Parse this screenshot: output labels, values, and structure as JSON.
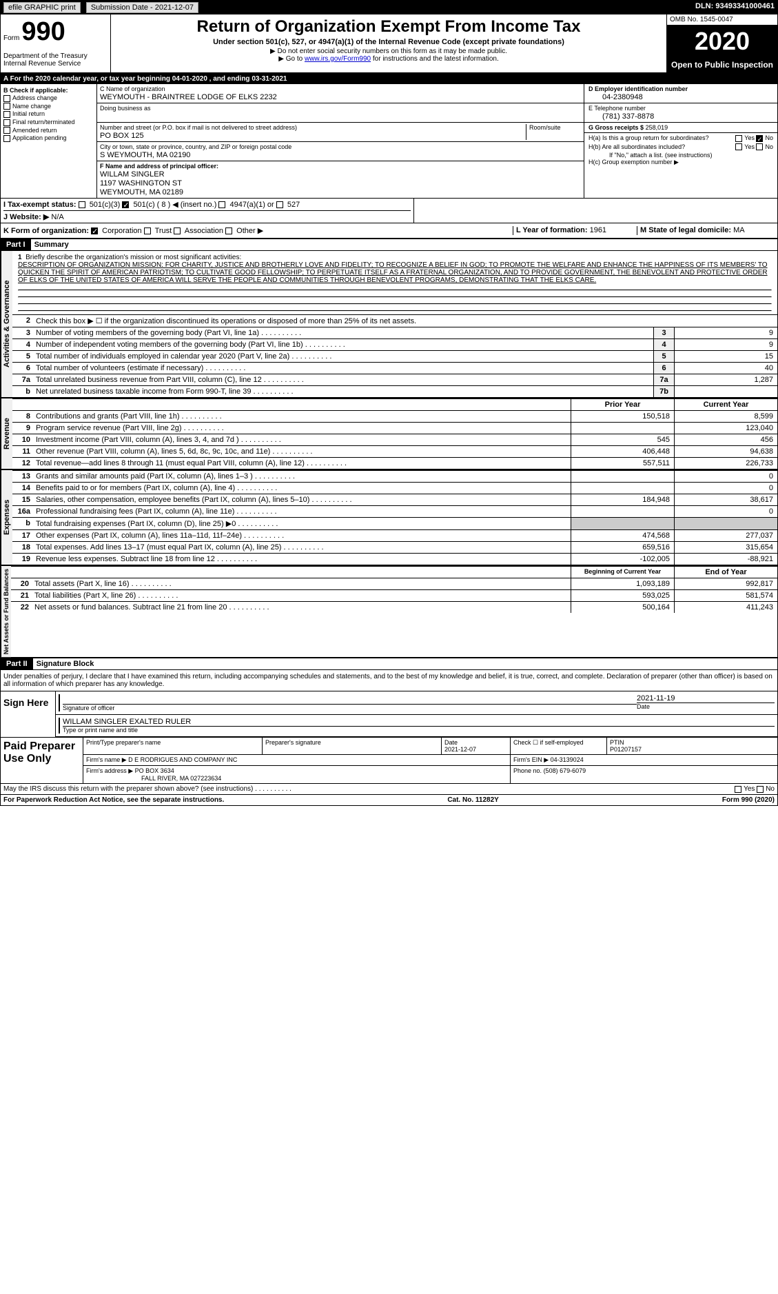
{
  "topbar": {
    "efile": "efile GRAPHIC print",
    "submission_label": "Submission Date - 2021-12-07",
    "dln_label": "DLN: 93493341000461"
  },
  "header": {
    "form_label": "Form",
    "form_num": "990",
    "dept": "Department of the Treasury Internal Revenue Service",
    "title": "Return of Organization Exempt From Income Tax",
    "subtitle": "Under section 501(c), 527, or 4947(a)(1) of the Internal Revenue Code (except private foundations)",
    "note1": "Do not enter social security numbers on this form as it may be made public.",
    "note2_pre": "Go to ",
    "note2_link": "www.irs.gov/Form990",
    "note2_post": " for instructions and the latest information.",
    "omb": "OMB No. 1545-0047",
    "year": "2020",
    "inspection": "Open to Public Inspection"
  },
  "period": "A For the 2020 calendar year, or tax year beginning 04-01-2020    , and ending 03-31-2021",
  "section_b": {
    "header": "B Check if applicable:",
    "opts": [
      "Address change",
      "Name change",
      "Initial return",
      "Final return/terminated",
      "Amended return",
      "Application pending"
    ]
  },
  "section_c": {
    "name_label": "C Name of organization",
    "name": "WEYMOUTH - BRAINTREE LODGE OF ELKS 2232",
    "dba_label": "Doing business as",
    "addr_label": "Number and street (or P.O. box if mail is not delivered to street address)",
    "room_label": "Room/suite",
    "addr": "PO BOX 125",
    "city_label": "City or town, state or province, country, and ZIP or foreign postal code",
    "city": "S WEYMOUTH, MA  02190"
  },
  "section_d": {
    "label": "D Employer identification number",
    "val": "04-2380948"
  },
  "section_e": {
    "label": "E Telephone number",
    "val": "(781) 337-8878"
  },
  "section_g": {
    "label": "G Gross receipts $",
    "val": "258,019"
  },
  "section_f": {
    "label": "F  Name and address of principal officer:",
    "name": "WILLAM SINGLER",
    "addr1": "1197 WASHINGTON ST",
    "addr2": "WEYMOUTH, MA  02189"
  },
  "section_h": {
    "ha": "H(a)  Is this a group return for subordinates?",
    "hb": "H(b)  Are all subordinates included?",
    "hb_note": "If \"No,\" attach a list. (see instructions)",
    "hc": "H(c)  Group exemption number ▶",
    "yes": "Yes",
    "no": "No"
  },
  "section_i": {
    "label": "I    Tax-exempt status:",
    "opts": [
      "501(c)(3)",
      "501(c) ( 8 ) ◀ (insert no.)",
      "4947(a)(1) or",
      "527"
    ]
  },
  "section_j": {
    "label": "J   Website: ▶",
    "val": "N/A"
  },
  "section_k": {
    "label": "K Form of organization:",
    "opts": [
      "Corporation",
      "Trust",
      "Association",
      "Other ▶"
    ]
  },
  "section_l": {
    "label": "L Year of formation:",
    "val": "1961"
  },
  "section_m": {
    "label": "M State of legal domicile:",
    "val": "MA"
  },
  "part1": {
    "header": "Part I",
    "title": "Summary",
    "vert_activities": "Activities & Governance",
    "vert_revenue": "Revenue",
    "vert_expenses": "Expenses",
    "vert_netassets": "Net Assets or Fund Balances",
    "line1_label": "Briefly describe the organization's mission or most significant activities:",
    "mission": "DESCRIPTION OF ORGANIZATION MISSION: FOR CHARITY, JUSTICE AND BROTHERLY LOVE AND FIDELITY; TO RECOGNIZE A BELIEF IN GOD; TO PROMOTE THE WELFARE AND ENHANCE THE HAPPINESS OF ITS MEMBERS' TO QUICKEN THE SPIRIT OF AMERICAN PATRIOTISM; TO CULTIVATE GOOD FELLOWSHIP; TO PERPETUATE ITSELF AS A FRATERNAL ORGANIZATION, AND TO PROVIDE GOVERNMENT, THE BENEVOLENT AND PROTECTIVE ORDER OF ELKS OF THE UNITED STATES OF AMERICA WILL SERVE THE PEOPLE AND COMMUNITIES THROUGH BENEVOLENT PROGRAMS, DEMONSTRATING THAT THE ELKS CARE.",
    "line2": "Check this box ▶ ☐  if the organization discontinued its operations or disposed of more than 25% of its net assets.",
    "rows_gov": [
      {
        "n": "3",
        "label": "Number of voting members of the governing body (Part VI, line 1a)",
        "box": "3",
        "val": "9"
      },
      {
        "n": "4",
        "label": "Number of independent voting members of the governing body (Part VI, line 1b)",
        "box": "4",
        "val": "9"
      },
      {
        "n": "5",
        "label": "Total number of individuals employed in calendar year 2020 (Part V, line 2a)",
        "box": "5",
        "val": "15"
      },
      {
        "n": "6",
        "label": "Total number of volunteers (estimate if necessary)",
        "box": "6",
        "val": "40"
      },
      {
        "n": "7a",
        "label": "Total unrelated business revenue from Part VIII, column (C), line 12",
        "box": "7a",
        "val": "1,287"
      },
      {
        "n": "b",
        "label": "Net unrelated business taxable income from Form 990-T, line 39",
        "box": "7b",
        "val": ""
      }
    ],
    "col_prior": "Prior Year",
    "col_current": "Current Year",
    "rows_rev": [
      {
        "n": "8",
        "label": "Contributions and grants (Part VIII, line 1h)",
        "prior": "150,518",
        "curr": "8,599"
      },
      {
        "n": "9",
        "label": "Program service revenue (Part VIII, line 2g)",
        "prior": "",
        "curr": "123,040"
      },
      {
        "n": "10",
        "label": "Investment income (Part VIII, column (A), lines 3, 4, and 7d )",
        "prior": "545",
        "curr": "456"
      },
      {
        "n": "11",
        "label": "Other revenue (Part VIII, column (A), lines 5, 6d, 8c, 9c, 10c, and 11e)",
        "prior": "406,448",
        "curr": "94,638"
      },
      {
        "n": "12",
        "label": "Total revenue—add lines 8 through 11 (must equal Part VIII, column (A), line 12)",
        "prior": "557,511",
        "curr": "226,733"
      }
    ],
    "rows_exp": [
      {
        "n": "13",
        "label": "Grants and similar amounts paid (Part IX, column (A), lines 1–3 )",
        "prior": "",
        "curr": "0"
      },
      {
        "n": "14",
        "label": "Benefits paid to or for members (Part IX, column (A), line 4)",
        "prior": "",
        "curr": "0"
      },
      {
        "n": "15",
        "label": "Salaries, other compensation, employee benefits (Part IX, column (A), lines 5–10)",
        "prior": "184,948",
        "curr": "38,617"
      },
      {
        "n": "16a",
        "label": "Professional fundraising fees (Part IX, column (A), line 11e)",
        "prior": "",
        "curr": "0"
      },
      {
        "n": "b",
        "label": "Total fundraising expenses (Part IX, column (D), line 25) ▶0",
        "prior": "gray",
        "curr": "gray"
      },
      {
        "n": "17",
        "label": "Other expenses (Part IX, column (A), lines 11a–11d, 11f–24e)",
        "prior": "474,568",
        "curr": "277,037"
      },
      {
        "n": "18",
        "label": "Total expenses. Add lines 13–17 (must equal Part IX, column (A), line 25)",
        "prior": "659,516",
        "curr": "315,654"
      },
      {
        "n": "19",
        "label": "Revenue less expenses. Subtract line 18 from line 12",
        "prior": "-102,005",
        "curr": "-88,921"
      }
    ],
    "col_begin": "Beginning of Current Year",
    "col_end": "End of Year",
    "rows_net": [
      {
        "n": "20",
        "label": "Total assets (Part X, line 16)",
        "prior": "1,093,189",
        "curr": "992,817"
      },
      {
        "n": "21",
        "label": "Total liabilities (Part X, line 26)",
        "prior": "593,025",
        "curr": "581,574"
      },
      {
        "n": "22",
        "label": "Net assets or fund balances. Subtract line 21 from line 20",
        "prior": "500,164",
        "curr": "411,243"
      }
    ]
  },
  "part2": {
    "header": "Part II",
    "title": "Signature Block",
    "penalty": "Under penalties of perjury, I declare that I have examined this return, including accompanying schedules and statements, and to the best of my knowledge and belief, it is true, correct, and complete. Declaration of preparer (other than officer) is based on all information of which preparer has any knowledge.",
    "sign_here": "Sign Here",
    "sig_officer": "Signature of officer",
    "sig_date": "2021-11-19",
    "date_label": "Date",
    "officer_name": "WILLAM SINGLER  EXALTED RULER",
    "type_label": "Type or print name and title",
    "paid_prep": "Paid Preparer Use Only",
    "prep_name_label": "Print/Type preparer's name",
    "prep_sig_label": "Preparer's signature",
    "prep_date_label": "Date",
    "prep_date": "2021-12-07",
    "self_emp": "Check ☐ if self-employed",
    "ptin_label": "PTIN",
    "ptin": "P01207157",
    "firm_name_label": "Firm's name    ▶",
    "firm_name": "D E RODRIGUES AND COMPANY INC",
    "firm_ein_label": "Firm's EIN ▶",
    "firm_ein": "04-3139024",
    "firm_addr_label": "Firm's address ▶",
    "firm_addr": "PO BOX 3634",
    "firm_city": "FALL RIVER, MA  027223634",
    "phone_label": "Phone no.",
    "phone": "(508) 679-6079",
    "discuss": "May the IRS discuss this return with the preparer shown above? (see instructions)",
    "paperwork": "For Paperwork Reduction Act Notice, see the separate instructions.",
    "cat": "Cat. No. 11282Y",
    "form_foot": "Form 990 (2020)"
  }
}
